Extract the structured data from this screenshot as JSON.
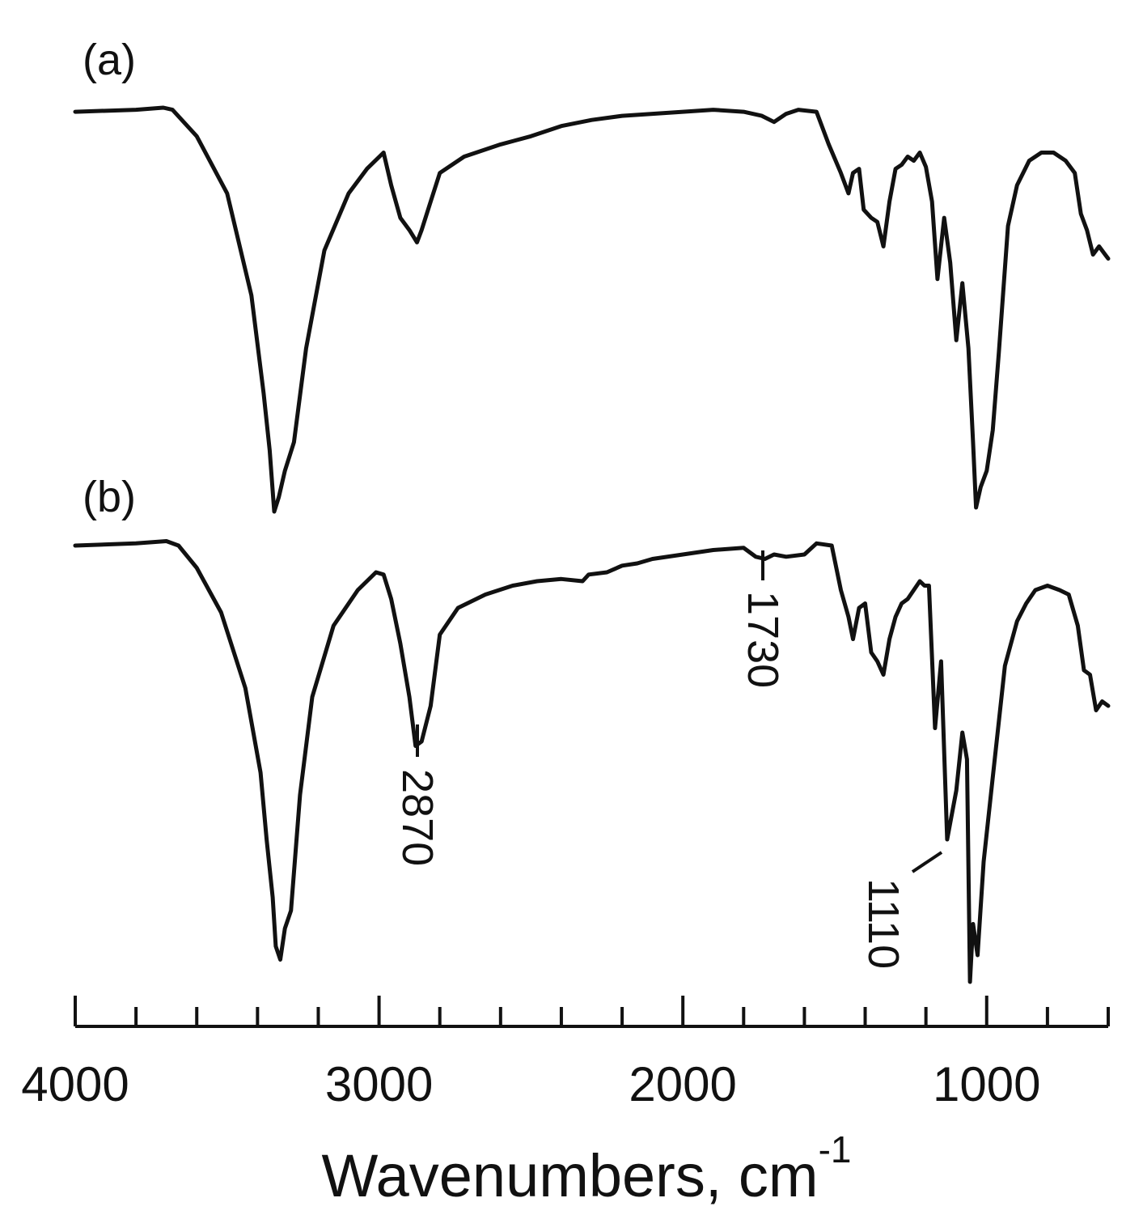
{
  "chart_data": {
    "type": "line",
    "xlabel": "Wavenumbers, cm",
    "xlabel_superscript": "-1",
    "xlim": [
      4000,
      600
    ],
    "x_reversed": true,
    "x_ticks": [
      4000,
      3000,
      2000,
      1000
    ],
    "x_tick_labels": [
      "4000",
      "3000",
      "2000",
      "1000"
    ],
    "y_axis_shown": false,
    "grid": false,
    "series": [
      {
        "name": "(a)",
        "x": [
          4000,
          3800,
          3710,
          3680,
          3600,
          3500,
          3420,
          3380,
          3360,
          3345,
          3330,
          3310,
          3280,
          3240,
          3180,
          3100,
          3040,
          2985,
          2960,
          2930,
          2900,
          2875,
          2860,
          2830,
          2800,
          2720,
          2600,
          2500,
          2400,
          2300,
          2200,
          2100,
          2000,
          1900,
          1800,
          1740,
          1700,
          1660,
          1620,
          1560,
          1520,
          1480,
          1455,
          1440,
          1420,
          1405,
          1380,
          1360,
          1340,
          1320,
          1300,
          1280,
          1260,
          1240,
          1220,
          1200,
          1180,
          1162,
          1140,
          1120,
          1100,
          1080,
          1060,
          1045,
          1035,
          1020,
          1000,
          980,
          960,
          930,
          900,
          860,
          820,
          780,
          740,
          710,
          690,
          670,
          650,
          630,
          610,
          600
        ],
        "y": [
          0.98,
          0.985,
          0.99,
          0.985,
          0.92,
          0.78,
          0.53,
          0.29,
          0.15,
          0.0,
          0.035,
          0.1,
          0.17,
          0.4,
          0.64,
          0.78,
          0.84,
          0.88,
          0.8,
          0.72,
          0.69,
          0.66,
          0.69,
          0.76,
          0.83,
          0.87,
          0.9,
          0.92,
          0.945,
          0.96,
          0.97,
          0.975,
          0.98,
          0.985,
          0.98,
          0.97,
          0.955,
          0.975,
          0.985,
          0.98,
          0.9,
          0.83,
          0.78,
          0.83,
          0.84,
          0.74,
          0.72,
          0.71,
          0.65,
          0.76,
          0.84,
          0.85,
          0.87,
          0.86,
          0.88,
          0.845,
          0.76,
          0.57,
          0.72,
          0.61,
          0.42,
          0.56,
          0.4,
          0.17,
          0.01,
          0.06,
          0.1,
          0.2,
          0.39,
          0.7,
          0.8,
          0.86,
          0.88,
          0.88,
          0.86,
          0.83,
          0.73,
          0.69,
          0.63,
          0.65,
          0.63,
          0.62
        ]
      },
      {
        "name": "(b)",
        "x": [
          4000,
          3800,
          3700,
          3660,
          3600,
          3520,
          3440,
          3390,
          3370,
          3350,
          3340,
          3325,
          3310,
          3290,
          3260,
          3220,
          3150,
          3070,
          3010,
          2985,
          2960,
          2930,
          2900,
          2880,
          2860,
          2830,
          2800,
          2740,
          2650,
          2560,
          2480,
          2400,
          2330,
          2310,
          2250,
          2200,
          2150,
          2100,
          2000,
          1900,
          1800,
          1760,
          1730,
          1700,
          1660,
          1600,
          1560,
          1510,
          1480,
          1455,
          1440,
          1420,
          1400,
          1380,
          1360,
          1340,
          1320,
          1300,
          1280,
          1260,
          1240,
          1220,
          1205,
          1190,
          1170,
          1150,
          1130,
          1100,
          1080,
          1065,
          1055,
          1045,
          1030,
          1010,
          980,
          940,
          900,
          870,
          840,
          800,
          760,
          730,
          700,
          680,
          660,
          640,
          620,
          600
        ],
        "y": [
          0.98,
          0.985,
          0.99,
          0.98,
          0.93,
          0.83,
          0.66,
          0.47,
          0.32,
          0.19,
          0.08,
          0.05,
          0.12,
          0.16,
          0.42,
          0.64,
          0.8,
          0.88,
          0.92,
          0.915,
          0.86,
          0.76,
          0.64,
          0.53,
          0.54,
          0.62,
          0.78,
          0.84,
          0.87,
          0.89,
          0.9,
          0.905,
          0.9,
          0.915,
          0.92,
          0.935,
          0.94,
          0.95,
          0.96,
          0.97,
          0.975,
          0.955,
          0.95,
          0.96,
          0.955,
          0.96,
          0.985,
          0.98,
          0.88,
          0.82,
          0.77,
          0.84,
          0.85,
          0.74,
          0.72,
          0.69,
          0.77,
          0.82,
          0.85,
          0.86,
          0.88,
          0.9,
          0.89,
          0.89,
          0.57,
          0.72,
          0.32,
          0.43,
          0.56,
          0.5,
          0.0,
          0.13,
          0.06,
          0.27,
          0.46,
          0.71,
          0.81,
          0.85,
          0.88,
          0.89,
          0.88,
          0.87,
          0.8,
          0.7,
          0.69,
          0.61,
          0.63,
          0.62
        ]
      }
    ],
    "annotations": [
      {
        "text": "2870",
        "series": 1,
        "x": 2870
      },
      {
        "text": "1730",
        "series": 1,
        "x": 1730
      },
      {
        "text": "1110",
        "series": 1,
        "x": 1110
      }
    ]
  }
}
